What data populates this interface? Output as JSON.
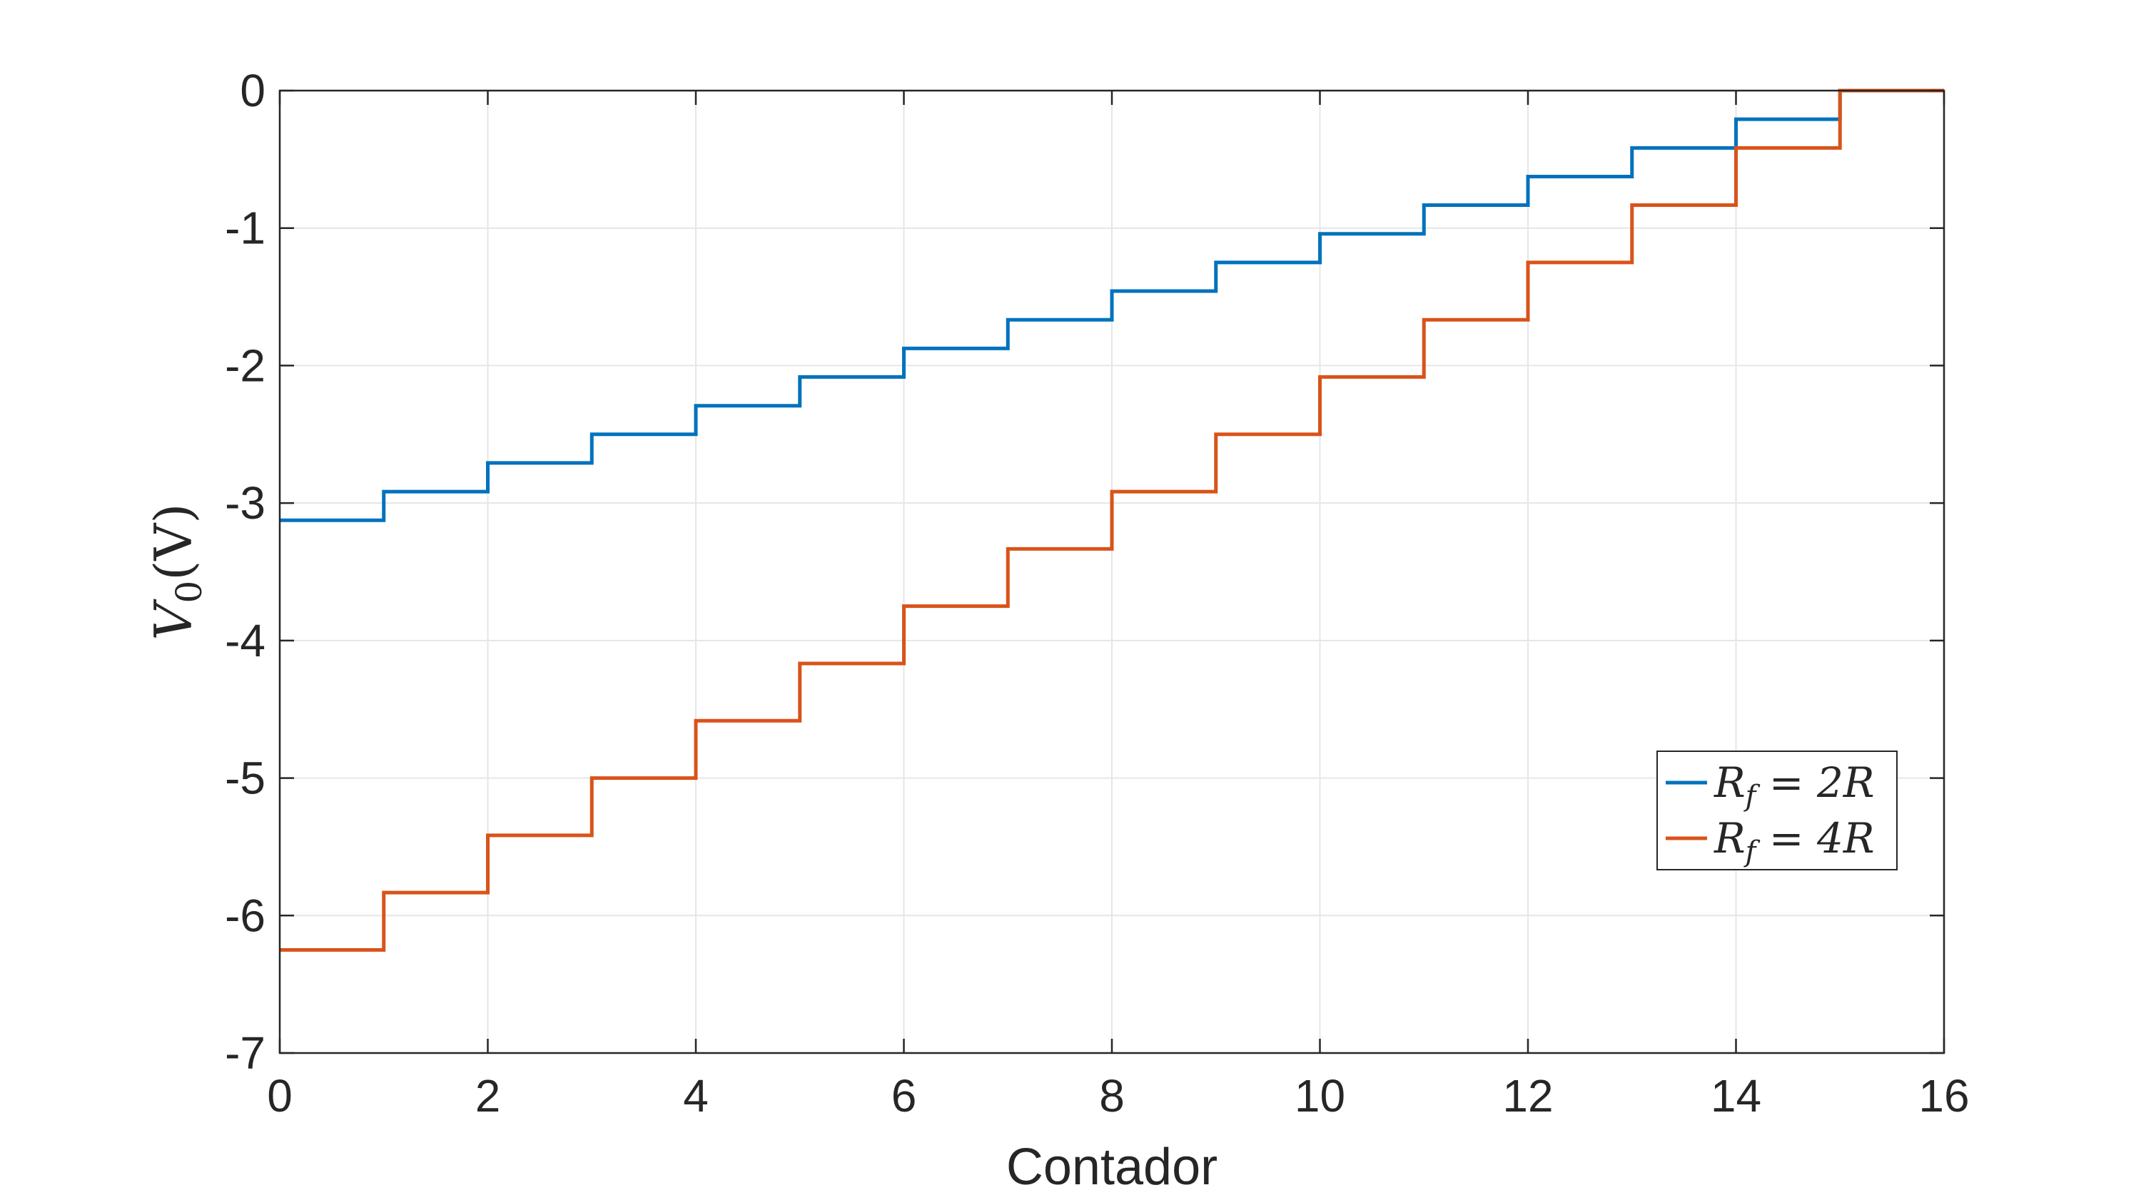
{
  "chart_data": {
    "type": "line",
    "step": "post",
    "xlabel": "Contador",
    "ylabel": {
      "symbol": "V",
      "subscript": "0",
      "unit": "(V)"
    },
    "xlim": [
      0,
      16
    ],
    "ylim": [
      -7,
      0
    ],
    "xticks": [
      0,
      2,
      4,
      6,
      8,
      10,
      12,
      14,
      16
    ],
    "yticks": [
      0,
      -1,
      -2,
      -3,
      -4,
      -5,
      -6,
      -7
    ],
    "grid": true,
    "legend_position": "lower-right",
    "series": [
      {
        "name": "Rf = 2R",
        "legend": {
          "symbol": "R",
          "subscript": "f",
          "rest": "= 2R"
        },
        "color": "#0072BD",
        "x": [
          0,
          1,
          2,
          3,
          4,
          5,
          6,
          7,
          8,
          9,
          10,
          11,
          12,
          13,
          14,
          15
        ],
        "y": [
          -3.125,
          -2.917,
          -2.708,
          -2.5,
          -2.292,
          -2.083,
          -1.875,
          -1.667,
          -1.458,
          -1.25,
          -1.042,
          -0.833,
          -0.625,
          -0.417,
          -0.208,
          0
        ]
      },
      {
        "name": "Rf = 4R",
        "legend": {
          "symbol": "R",
          "subscript": "f",
          "rest": "= 4R"
        },
        "color": "#D95319",
        "x": [
          0,
          1,
          2,
          3,
          4,
          5,
          6,
          7,
          8,
          9,
          10,
          11,
          12,
          13,
          14,
          15
        ],
        "y": [
          -6.25,
          -5.833,
          -5.417,
          -5.0,
          -4.583,
          -4.167,
          -3.75,
          -3.333,
          -2.917,
          -2.5,
          -2.083,
          -1.667,
          -1.25,
          -0.833,
          -0.417,
          0
        ]
      }
    ]
  }
}
